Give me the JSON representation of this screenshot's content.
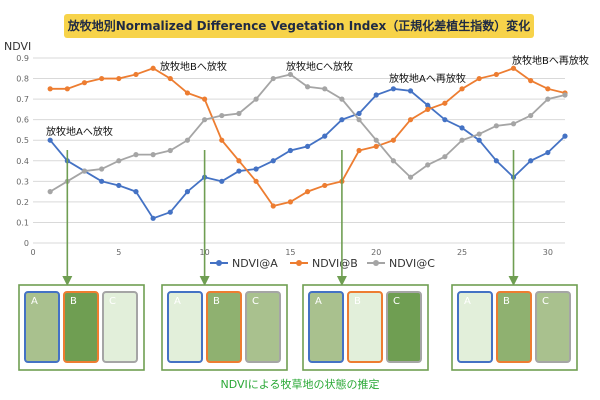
{
  "chart_data": {
    "type": "line",
    "title": "放牧地別Normalized Difference Vegetation Index（正規化差植生指数）変化",
    "ylabel": "NDVI",
    "ylim": [
      0,
      0.9
    ],
    "xlim": [
      0,
      31
    ],
    "xticks": [
      0,
      5,
      10,
      15,
      20,
      25,
      30
    ],
    "yticks": [
      0,
      0.1,
      0.2,
      0.3,
      0.4,
      0.5,
      0.6,
      0.7,
      0.8,
      0.9
    ],
    "ytick_labels": [
      "0",
      "0.1",
      "0.2",
      "0.3",
      "0.4",
      "0.5",
      "0.6",
      "0.7",
      "0.8",
      "0.9"
    ],
    "grid": true,
    "legend_position": "bottom",
    "x": [
      1,
      2,
      3,
      4,
      5,
      6,
      7,
      8,
      9,
      10,
      11,
      12,
      13,
      14,
      15,
      16,
      17,
      18,
      19,
      20,
      21,
      22,
      23,
      24,
      25,
      26,
      27,
      28,
      29,
      30,
      31
    ],
    "series": [
      {
        "name": "NDVI@A",
        "color": "#4472c4",
        "values": [
          0.5,
          0.4,
          0.35,
          0.3,
          0.28,
          0.25,
          0.12,
          0.15,
          0.25,
          0.32,
          0.3,
          0.35,
          0.36,
          0.4,
          0.45,
          0.47,
          0.52,
          0.6,
          0.63,
          0.72,
          0.75,
          0.74,
          0.67,
          0.6,
          0.56,
          0.5,
          0.4,
          0.32,
          0.4,
          0.44,
          0.52
        ]
      },
      {
        "name": "NDVI@B",
        "color": "#ed7d31",
        "values": [
          0.75,
          0.75,
          0.78,
          0.8,
          0.8,
          0.82,
          0.85,
          0.8,
          0.73,
          0.7,
          0.5,
          0.4,
          0.3,
          0.18,
          0.2,
          0.25,
          0.28,
          0.3,
          0.45,
          0.47,
          0.5,
          0.6,
          0.65,
          0.68,
          0.75,
          0.8,
          0.82,
          0.85,
          0.79,
          0.75,
          0.73
        ]
      },
      {
        "name": "NDVI@C",
        "color": "#a5a5a5",
        "values": [
          0.25,
          0.3,
          0.35,
          0.36,
          0.4,
          0.43,
          0.43,
          0.45,
          0.5,
          0.6,
          0.62,
          0.63,
          0.7,
          0.8,
          0.82,
          0.76,
          0.75,
          0.7,
          0.6,
          0.5,
          0.4,
          0.32,
          0.38,
          0.42,
          0.5,
          0.53,
          0.57,
          0.58,
          0.62,
          0.7,
          0.72
        ]
      }
    ],
    "annotations": [
      {
        "text": "放牧地Aへ放牧",
        "at_x": 2
      },
      {
        "text": "放牧地Bへ放牧",
        "at_x": 10
      },
      {
        "text": "放牧地Cへ放牧",
        "at_x": 18
      },
      {
        "text": "放牧地Aへ再放牧",
        "at_x": 28
      },
      {
        "text": "放牧地Bへ再放牧",
        "at_x": 28
      }
    ]
  },
  "paddock_panels": [
    {
      "A": {
        "label": "A",
        "fill": "#a9c18e",
        "border": "#4472c4"
      },
      "B": {
        "label": "B",
        "fill": "#6f9e52",
        "border": "#ed7d31"
      },
      "C": {
        "label": "C",
        "fill": "#e2efda",
        "border": "#a5a5a5"
      }
    },
    {
      "A": {
        "label": "A",
        "fill": "#e2efda",
        "border": "#4472c4"
      },
      "B": {
        "label": "B",
        "fill": "#8fb170",
        "border": "#ed7d31"
      },
      "C": {
        "label": "C",
        "fill": "#a9c18e",
        "border": "#a5a5a5"
      }
    },
    {
      "A": {
        "label": "A",
        "fill": "#a9c18e",
        "border": "#4472c4"
      },
      "B": {
        "label": "B",
        "fill": "#e2efda",
        "border": "#ed7d31"
      },
      "C": {
        "label": "C",
        "fill": "#6f9e52",
        "border": "#a5a5a5"
      }
    },
    {
      "A": {
        "label": "A",
        "fill": "#e2efda",
        "border": "#4472c4"
      },
      "B": {
        "label": "B",
        "fill": "#8fb170",
        "border": "#ed7d31"
      },
      "C": {
        "label": "C",
        "fill": "#a9c18e",
        "border": "#a5a5a5"
      }
    }
  ],
  "caption": "NDVIによる牧草地の状態の推定",
  "colors": {
    "arrow": "#6f9e52",
    "panel_frame": "#6f9e52",
    "grid": "#d9d9d9",
    "caption": "#2aa836",
    "title_bg": "#f7d34a"
  }
}
